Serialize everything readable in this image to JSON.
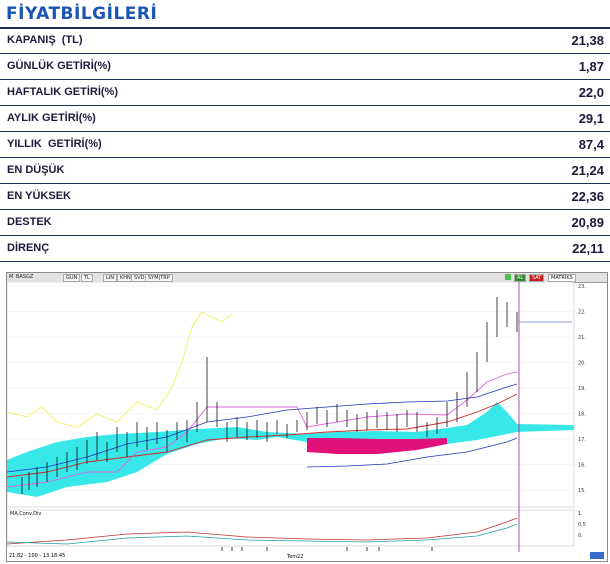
{
  "title": "FİYATBİLGİLERİ",
  "rows": [
    {
      "label": "KAPANIŞ  (TL)",
      "value": "21,38"
    },
    {
      "label": "GÜNLÜK GETİRİ(%)",
      "value": "1,87"
    },
    {
      "label": "HAFTALIK GETİRİ(%)",
      "value": "22,0"
    },
    {
      "label": "AYLIK GETİRİ(%)",
      "value": "29,1"
    },
    {
      "label": "YILLIK  GETİRİ(%)",
      "value": "87,4"
    },
    {
      "label": "EN DÜŞÜK",
      "value": "21,24"
    },
    {
      "label": "EN YÜKSEK",
      "value": "22,36"
    },
    {
      "label": "DESTEK",
      "value": "20,89"
    },
    {
      "label": "DİRENÇ",
      "value": "22,11"
    }
  ],
  "chart": {
    "toolbar": {
      "symbol": "M",
      "symbol_text": "BASGZ",
      "buttons": [
        "GUN",
        "TL",
        "LIN",
        "KHN",
        "SVD",
        "SYM|TRP"
      ],
      "al": "AL",
      "sat": "SAT",
      "matriks": "MATRİKS"
    },
    "y_ticks": [
      "23.",
      "22.",
      "21.",
      "20.",
      "19.",
      "18.",
      "17.",
      "16.",
      "15."
    ],
    "indicator_label": "MA.Conv.Div",
    "indicator_ticks": [
      "1.",
      "0.5",
      "0."
    ],
    "status_text": "21,82 - 100 - 13:18:45",
    "time_label": "Tem22",
    "colors": {
      "cloud_bull": "#22e5e5",
      "cloud_bear": "#e0127a",
      "lagging": "#f0f05a",
      "base_line": "#d02a2a",
      "conversion": "#e066e0",
      "ma_blue": "#2233bb",
      "current_line": "#9a2a9a",
      "price_bars": "#111111",
      "macd_line": "#c03030",
      "macd_signal": "#20a0a0"
    }
  }
}
